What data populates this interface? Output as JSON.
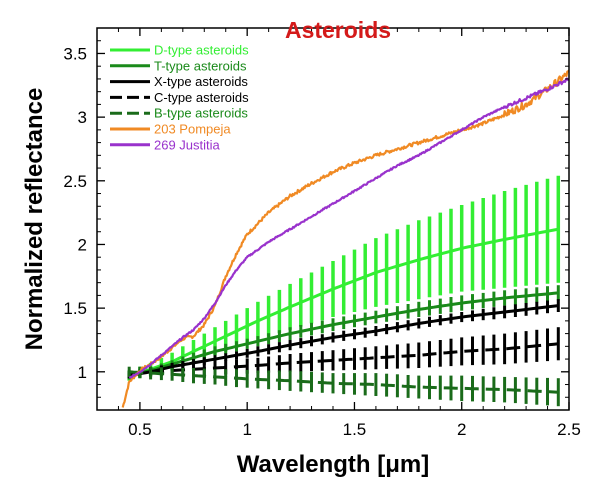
{
  "chart_data": {
    "type": "line",
    "title": "Asteroids",
    "xlabel": "Wavelength [μm]",
    "ylabel": "Normalized reflectance",
    "xlim": [
      0.3,
      2.5
    ],
    "ylim": [
      0.7,
      3.7
    ],
    "xticks": [
      0.5,
      1,
      1.5,
      2,
      2.5
    ],
    "xtick_labels": [
      "0.5",
      "1",
      "1.5",
      "2",
      "2.5"
    ],
    "yticks": [
      1,
      1.5,
      2,
      2.5,
      3,
      3.5
    ],
    "ytick_labels": [
      "1",
      "1.5",
      "2",
      "2.5",
      "3",
      "3.5"
    ],
    "grid": false,
    "legend_position": "top-left",
    "series": [
      {
        "name": "D-type asteroids",
        "color": "#33ee33",
        "style": "solid",
        "error_bars": true,
        "x": [
          0.45,
          0.55,
          0.65,
          0.75,
          0.85,
          0.95,
          1.05,
          1.2,
          1.4,
          1.6,
          1.8,
          2.0,
          2.2,
          2.45
        ],
        "y": [
          0.97,
          1.02,
          1.08,
          1.16,
          1.24,
          1.32,
          1.4,
          1.51,
          1.65,
          1.78,
          1.88,
          1.97,
          2.04,
          2.12
        ],
        "err": [
          0.04,
          0.05,
          0.07,
          0.09,
          0.11,
          0.13,
          0.15,
          0.18,
          0.22,
          0.27,
          0.31,
          0.34,
          0.38,
          0.42
        ]
      },
      {
        "name": "T-type asteroids",
        "color": "#1a8a1a",
        "style": "solid",
        "error_bars": true,
        "x": [
          0.45,
          0.55,
          0.65,
          0.75,
          0.85,
          0.95,
          1.05,
          1.2,
          1.4,
          1.6,
          1.8,
          2.0,
          2.2,
          2.45
        ],
        "y": [
          0.97,
          1.01,
          1.06,
          1.11,
          1.16,
          1.2,
          1.24,
          1.3,
          1.37,
          1.43,
          1.49,
          1.54,
          1.58,
          1.62
        ],
        "err": [
          0.03,
          0.03,
          0.03,
          0.04,
          0.04,
          0.04,
          0.04,
          0.05,
          0.05,
          0.05,
          0.06,
          0.06,
          0.06,
          0.06
        ]
      },
      {
        "name": "X-type asteroids",
        "color": "#000000",
        "style": "solid",
        "error_bars": true,
        "x": [
          0.45,
          0.55,
          0.65,
          0.75,
          0.85,
          0.95,
          1.05,
          1.2,
          1.4,
          1.6,
          1.8,
          2.0,
          2.2,
          2.45
        ],
        "y": [
          0.97,
          1.0,
          1.04,
          1.07,
          1.1,
          1.13,
          1.16,
          1.21,
          1.27,
          1.32,
          1.38,
          1.43,
          1.47,
          1.52
        ],
        "err": [
          0.02,
          0.03,
          0.03,
          0.03,
          0.03,
          0.03,
          0.04,
          0.04,
          0.04,
          0.04,
          0.04,
          0.04,
          0.05,
          0.05
        ]
      },
      {
        "name": "C-type asteroids",
        "color": "#000000",
        "style": "dashed",
        "error_bars": true,
        "x": [
          0.45,
          0.55,
          0.65,
          0.75,
          0.85,
          0.95,
          1.05,
          1.2,
          1.4,
          1.6,
          1.8,
          2.0,
          2.2,
          2.45
        ],
        "y": [
          0.98,
          1.0,
          1.01,
          1.02,
          1.03,
          1.04,
          1.05,
          1.07,
          1.09,
          1.11,
          1.13,
          1.16,
          1.18,
          1.22
        ],
        "err": [
          0.03,
          0.04,
          0.04,
          0.05,
          0.05,
          0.06,
          0.06,
          0.07,
          0.08,
          0.09,
          0.1,
          0.11,
          0.12,
          0.13
        ]
      },
      {
        "name": "B-type asteroids",
        "color": "#1a6b1a",
        "style": "dashed",
        "error_bars": true,
        "x": [
          0.45,
          0.55,
          0.65,
          0.75,
          0.85,
          0.95,
          1.05,
          1.2,
          1.4,
          1.6,
          1.8,
          2.0,
          2.2,
          2.45
        ],
        "y": [
          1.0,
          0.99,
          0.98,
          0.97,
          0.96,
          0.95,
          0.94,
          0.93,
          0.91,
          0.9,
          0.88,
          0.87,
          0.86,
          0.84
        ],
        "err": [
          0.04,
          0.05,
          0.05,
          0.06,
          0.06,
          0.07,
          0.07,
          0.08,
          0.08,
          0.09,
          0.09,
          0.1,
          0.1,
          0.11
        ]
      },
      {
        "name": "203 Pompeja",
        "color": "#f08a24",
        "style": "noisy",
        "error_bars": false,
        "x": [
          0.42,
          0.45,
          0.5,
          0.55,
          0.6,
          0.65,
          0.7,
          0.75,
          0.8,
          0.85,
          0.9,
          0.95,
          1.0,
          1.1,
          1.2,
          1.3,
          1.4,
          1.5,
          1.6,
          1.7,
          1.8,
          1.9,
          2.0,
          2.1,
          2.2,
          2.3,
          2.4,
          2.5
        ],
        "y": [
          0.72,
          0.92,
          1.01,
          1.06,
          1.12,
          1.19,
          1.26,
          1.28,
          1.37,
          1.52,
          1.75,
          1.93,
          2.08,
          2.25,
          2.38,
          2.48,
          2.57,
          2.64,
          2.7,
          2.75,
          2.8,
          2.85,
          2.9,
          2.95,
          3.02,
          3.1,
          3.22,
          3.35
        ]
      },
      {
        "name": "269 Justitia",
        "color": "#9932cc",
        "style": "noisy",
        "error_bars": false,
        "x": [
          0.45,
          0.5,
          0.55,
          0.6,
          0.65,
          0.7,
          0.75,
          0.8,
          0.85,
          0.9,
          0.95,
          1.0,
          1.1,
          1.2,
          1.3,
          1.4,
          1.5,
          1.6,
          1.7,
          1.8,
          1.9,
          2.0,
          2.1,
          2.2,
          2.3,
          2.4,
          2.5
        ],
        "y": [
          0.95,
          1.0,
          1.06,
          1.13,
          1.2,
          1.27,
          1.33,
          1.42,
          1.54,
          1.68,
          1.8,
          1.9,
          2.02,
          2.12,
          2.22,
          2.32,
          2.42,
          2.52,
          2.62,
          2.7,
          2.8,
          2.9,
          3.0,
          3.08,
          3.15,
          3.22,
          3.3
        ]
      }
    ]
  }
}
